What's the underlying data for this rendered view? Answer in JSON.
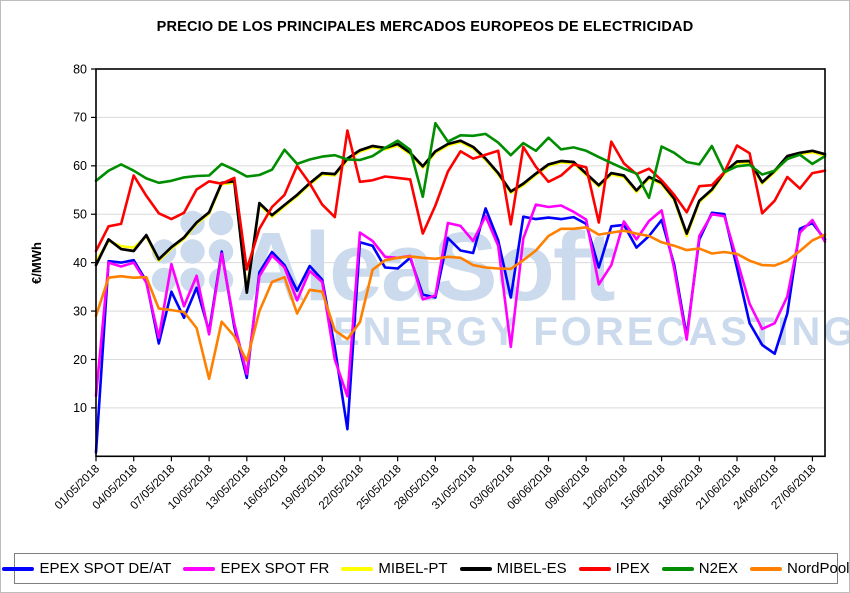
{
  "title": "PRECIO DE LOS PRINCIPALES MERCADOS EUROPEOS DE ELECTRICIDAD",
  "watermark": {
    "name": "AleaSoft",
    "tagline": "ENERGY FORECASTING",
    "color": "#cbdaec"
  },
  "legend": {
    "items": [
      {
        "label": "EPEX SPOT DE/AT",
        "color": "#0000ff"
      },
      {
        "label": "EPEX SPOT FR",
        "color": "#ff00ff"
      },
      {
        "label": "MIBEL-PT",
        "color": "#ffff00"
      },
      {
        "label": "MIBEL-ES",
        "color": "#000000"
      },
      {
        "label": "IPEX",
        "color": "#ff0000"
      },
      {
        "label": "N2EX",
        "color": "#008d00"
      },
      {
        "label": "NordPool",
        "color": "#ff8000"
      }
    ]
  },
  "chart_data": {
    "type": "line",
    "title": "PRECIO DE LOS PRINCIPALES MERCADOS EUROPEOS DE ELECTRICIDAD",
    "ylabel": "€/MWh",
    "ylim": [
      0,
      80
    ],
    "y_ticks": [
      10,
      20,
      30,
      40,
      50,
      60,
      70,
      80
    ],
    "grid": "horizontal",
    "legend_position": "bottom",
    "x_tick_every_days": 3,
    "x_tick_labels": [
      "01/05/2018",
      "04/05/2018",
      "07/05/2018",
      "10/05/2018",
      "13/05/2018",
      "16/05/2018",
      "19/05/2018",
      "22/05/2018",
      "25/05/2018",
      "28/05/2018",
      "31/05/2018",
      "03/06/2018",
      "06/06/2018",
      "09/06/2018",
      "12/06/2018",
      "15/06/2018",
      "18/06/2018",
      "21/06/2018",
      "24/06/2018",
      "27/06/2018"
    ],
    "dates": [
      "01/05/2018",
      "02/05/2018",
      "03/05/2018",
      "04/05/2018",
      "05/05/2018",
      "06/05/2018",
      "07/05/2018",
      "08/05/2018",
      "09/05/2018",
      "10/05/2018",
      "11/05/2018",
      "12/05/2018",
      "13/05/2018",
      "14/05/2018",
      "15/05/2018",
      "16/05/2018",
      "17/05/2018",
      "18/05/2018",
      "19/05/2018",
      "20/05/2018",
      "21/05/2018",
      "22/05/2018",
      "23/05/2018",
      "24/05/2018",
      "25/05/2018",
      "26/05/2018",
      "27/05/2018",
      "28/05/2018",
      "29/05/2018",
      "30/05/2018",
      "31/05/2018",
      "01/06/2018",
      "02/06/2018",
      "03/06/2018",
      "04/06/2018",
      "05/06/2018",
      "06/06/2018",
      "07/06/2018",
      "08/06/2018",
      "09/06/2018",
      "10/06/2018",
      "11/06/2018",
      "12/06/2018",
      "13/06/2018",
      "14/06/2018",
      "15/06/2018",
      "16/06/2018",
      "17/06/2018",
      "18/06/2018",
      "19/06/2018",
      "20/06/2018",
      "21/06/2018",
      "22/06/2018",
      "23/06/2018",
      "24/06/2018",
      "25/06/2018",
      "26/06/2018",
      "27/06/2018",
      "28/06/2018"
    ],
    "series": [
      {
        "name": "EPEX SPOT DE/AT",
        "color": "#0000ff",
        "width": 2.6,
        "values": [
          0.8,
          40.3,
          40.0,
          40.5,
          36.2,
          23.3,
          34.0,
          28.6,
          34.8,
          25.8,
          42.3,
          26.7,
          16.2,
          38.0,
          42.2,
          39.5,
          34.2,
          39.3,
          36.5,
          22.5,
          5.6,
          44.2,
          43.5,
          39.0,
          38.8,
          41.0,
          33.4,
          32.8,
          45.1,
          42.5,
          42.0,
          51.2,
          44.6,
          32.8,
          49.5,
          49.0,
          49.3,
          49.0,
          49.4,
          48.0,
          39.0,
          47.5,
          47.8,
          43.1,
          45.5,
          48.8,
          39.6,
          24.8,
          44.8,
          50.3,
          50.0,
          38.9,
          27.5,
          23.0,
          21.2,
          29.5,
          47.0,
          48.2,
          44.8
        ]
      },
      {
        "name": "EPEX SPOT FR",
        "color": "#ff00ff",
        "width": 2.6,
        "values": [
          12.5,
          40.0,
          39.2,
          40.0,
          35.9,
          24.5,
          39.7,
          31.0,
          37.3,
          25.2,
          41.9,
          27.4,
          17.0,
          37.2,
          41.5,
          39.0,
          32.2,
          38.3,
          36.0,
          20.0,
          12.4,
          46.2,
          44.5,
          41.2,
          41.0,
          41.4,
          32.4,
          33.2,
          48.2,
          47.6,
          44.5,
          49.6,
          43.5,
          22.6,
          45.0,
          52.0,
          51.5,
          51.8,
          50.5,
          48.9,
          35.5,
          39.5,
          48.5,
          44.8,
          48.6,
          50.8,
          38.7,
          24.1,
          45.5,
          50.0,
          49.6,
          40.6,
          31.5,
          26.3,
          27.5,
          33.0,
          46.2,
          48.8,
          44.3
        ]
      },
      {
        "name": "MIBEL-PT",
        "color": "#ffff00",
        "width": 2.6,
        "values": [
          40.3,
          44.5,
          43.4,
          43.1,
          45.4,
          40.4,
          42.9,
          44.9,
          48.0,
          50.1,
          56.2,
          56.5,
          34.3,
          52.0,
          49.5,
          51.6,
          53.7,
          56.1,
          58.2,
          58.0,
          61.2,
          62.9,
          63.8,
          63.4,
          64.2,
          62.4,
          59.6,
          62.7,
          64.2,
          64.9,
          63.6,
          61.2,
          58.2,
          54.4,
          56.0,
          58.1,
          60.0,
          60.7,
          60.5,
          58.1,
          55.7,
          58.2,
          57.7,
          54.6,
          57.4,
          56.2,
          52.9,
          45.5,
          52.5,
          54.8,
          58.4,
          60.6,
          60.7,
          56.3,
          58.7,
          61.7,
          62.4,
          62.8,
          62.1
        ]
      },
      {
        "name": "MIBEL-ES",
        "color": "#000000",
        "width": 2.7,
        "values": [
          39.5,
          44.8,
          42.8,
          42.4,
          45.7,
          40.7,
          43.2,
          45.2,
          48.3,
          50.4,
          56.5,
          56.8,
          33.8,
          52.3,
          49.8,
          51.9,
          54.0,
          56.4,
          58.5,
          58.3,
          61.5,
          63.2,
          64.1,
          63.7,
          64.5,
          62.7,
          59.9,
          63.0,
          64.5,
          65.2,
          63.9,
          61.5,
          58.5,
          54.7,
          56.3,
          58.4,
          60.3,
          61.0,
          60.8,
          58.4,
          56.0,
          58.5,
          58.0,
          54.9,
          57.7,
          56.5,
          53.2,
          46.0,
          52.8,
          55.1,
          58.7,
          60.9,
          61.0,
          56.6,
          59.0,
          62.0,
          62.7,
          63.1,
          62.4
        ]
      },
      {
        "name": "IPEX",
        "color": "#ff0000",
        "width": 2.6,
        "values": [
          42.4,
          47.5,
          48.0,
          58.0,
          53.8,
          50.2,
          49.0,
          50.3,
          55.1,
          56.8,
          56.3,
          57.5,
          38.6,
          47.0,
          51.5,
          54.0,
          60.0,
          56.4,
          52.0,
          49.4,
          67.3,
          56.7,
          57.0,
          57.8,
          57.5,
          57.2,
          46.0,
          51.8,
          58.8,
          63.0,
          61.5,
          62.3,
          63.1,
          47.9,
          63.9,
          59.8,
          56.7,
          58.0,
          60.3,
          59.7,
          48.3,
          65.0,
          60.5,
          58.3,
          59.4,
          57.0,
          54.0,
          50.4,
          55.8,
          56.0,
          58.7,
          64.2,
          62.6,
          50.2,
          52.8,
          57.7,
          55.3,
          58.5,
          59.0
        ]
      },
      {
        "name": "N2EX",
        "color": "#008d00",
        "width": 2.6,
        "values": [
          56.9,
          59.0,
          60.3,
          59.0,
          57.4,
          56.5,
          56.9,
          57.6,
          57.9,
          58.0,
          60.4,
          59.2,
          57.8,
          58.1,
          59.2,
          63.3,
          60.4,
          61.3,
          61.9,
          62.2,
          61.3,
          61.2,
          62.0,
          63.7,
          65.2,
          63.3,
          53.6,
          68.8,
          65.0,
          66.3,
          66.2,
          66.6,
          64.8,
          62.2,
          64.7,
          63.1,
          65.8,
          63.4,
          63.8,
          63.1,
          61.8,
          60.6,
          59.4,
          58.4,
          53.4,
          64.0,
          62.7,
          60.8,
          60.3,
          64.1,
          58.7,
          59.9,
          60.2,
          58.2,
          59.0,
          61.4,
          62.3,
          60.4,
          62.0
        ]
      },
      {
        "name": "NordPool",
        "color": "#ff8000",
        "width": 2.6,
        "values": [
          29.0,
          36.9,
          37.2,
          36.9,
          37.0,
          30.5,
          30.2,
          29.8,
          26.5,
          16.0,
          27.8,
          24.8,
          19.7,
          30.0,
          36.0,
          37.0,
          29.5,
          34.4,
          34.0,
          26.0,
          24.2,
          27.7,
          38.5,
          40.5,
          41.0,
          41.3,
          41.0,
          40.8,
          41.2,
          41.0,
          39.5,
          39.0,
          38.8,
          38.7,
          40.5,
          42.5,
          45.5,
          47.0,
          47.0,
          47.3,
          45.8,
          46.2,
          46.6,
          46.0,
          45.5,
          44.2,
          43.5,
          42.6,
          42.9,
          41.9,
          42.2,
          41.8,
          40.4,
          39.5,
          39.4,
          40.4,
          42.4,
          44.6,
          45.8
        ]
      }
    ]
  }
}
